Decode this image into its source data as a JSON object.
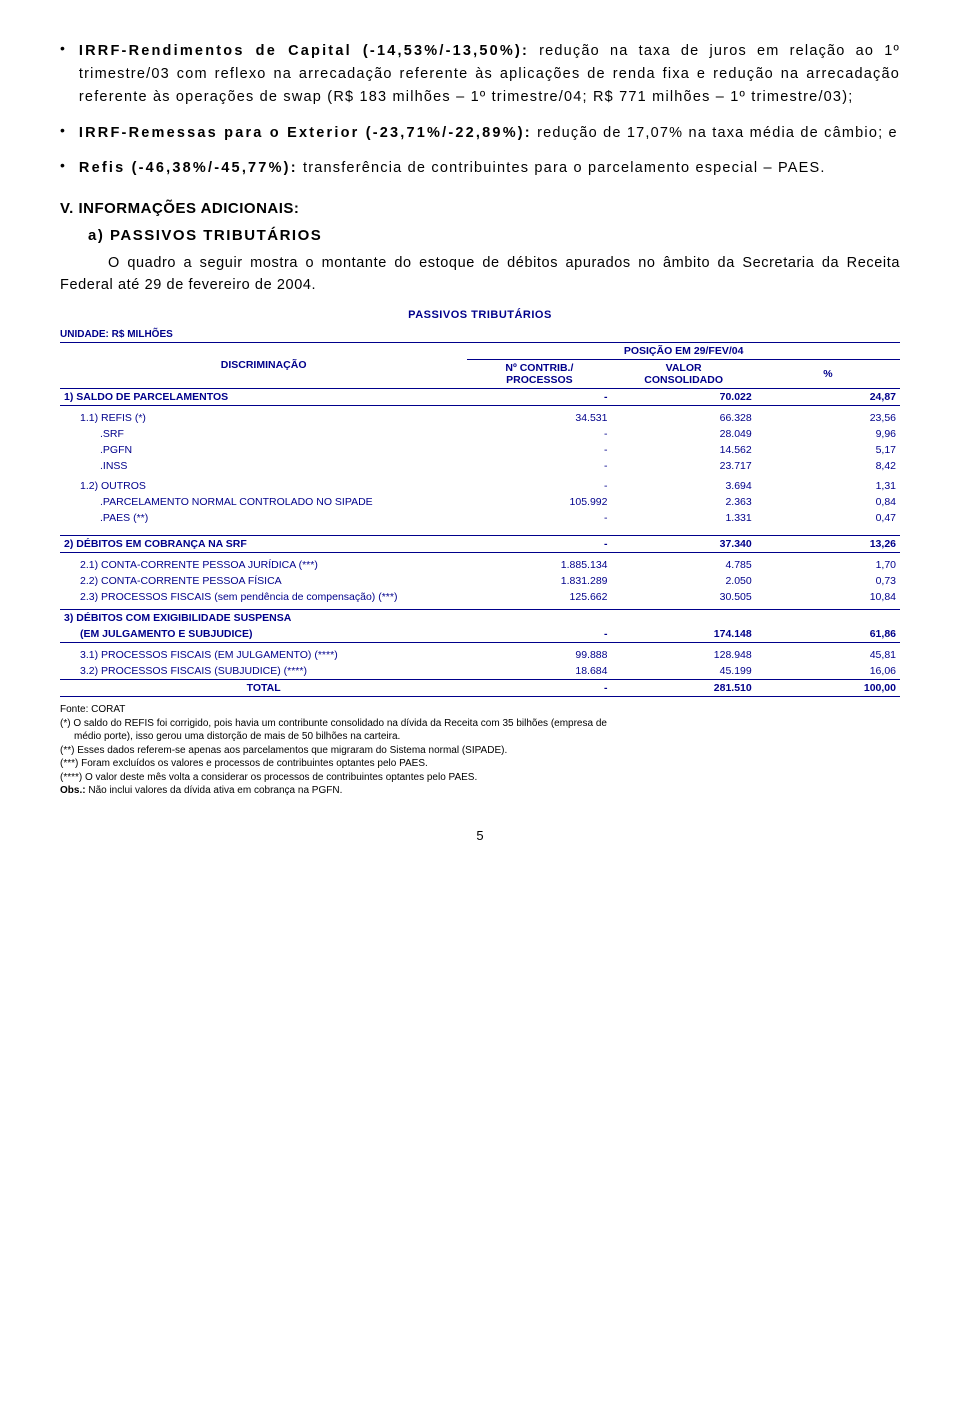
{
  "colors": {
    "text": "#000000",
    "table_text": "#00008b",
    "bg": "#ffffff",
    "border": "#00008b"
  },
  "fonts": {
    "body_size": 14.5,
    "table_size": 10.5,
    "footnote_size": 10
  },
  "bullets": [
    {
      "lead": "IRRF-Rendimentos de Capital (-14,53%/-13,50%):",
      "body": " redução na taxa de juros em relação ao 1º trimestre/03 com reflexo na arrecadação referente às aplicações de renda fixa e redução na arrecadação referente às operações de swap (R$ 183 milhões – 1º trimestre/04; R$ 771 milhões – 1º trimestre/03);"
    },
    {
      "lead": "IRRF-Remessas para o Exterior (-23,71%/-22,89%):",
      "body": " redução de 17,07% na taxa média de câmbio; e"
    },
    {
      "lead": "Refis (-46,38%/-45,77%):",
      "body": " transferência de contribuintes para o parcelamento especial – PAES."
    }
  ],
  "section_v": "V. INFORMAÇÕES ADICIONAIS:",
  "sub_a": "a) PASSIVOS TRIBUTÁRIOS",
  "para": "O quadro a seguir mostra o montante do estoque de débitos apurados no âmbito da Secretaria da Receita Federal até 29 de fevereiro de 2004.",
  "table_title": "PASSIVOS TRIBUTÁRIOS",
  "unit_line": "UNIDADE: R$ MILHÕES",
  "headers": {
    "disc": "DISCRIMINAÇÃO",
    "pos": "POSIÇÃO EM 29/FEV/04",
    "col1": "Nº CONTRIB./\nPROCESSOS",
    "col1a": "Nº CONTRIB./",
    "col1b": "PROCESSOS",
    "col2": "VALOR",
    "col2b": "CONSOLIDADO",
    "col3": "%"
  },
  "rows": [
    {
      "class": "bold-row section-border-bottom",
      "indent": "",
      "label": "1) SALDO DE PARCELAMENTOS",
      "c1": "-",
      "c2": "70.022",
      "c3": "24,87"
    },
    {
      "class": "spacer-small",
      "label": "",
      "c1": "",
      "c2": "",
      "c3": ""
    },
    {
      "class": "",
      "indent": "indent1",
      "label": "1.1) REFIS (*)",
      "c1": "34.531",
      "c2": "66.328",
      "c3": "23,56"
    },
    {
      "class": "",
      "indent": "indent2",
      "label": ".SRF",
      "c1": "-",
      "c2": "28.049",
      "c3": "9,96"
    },
    {
      "class": "",
      "indent": "indent2",
      "label": ".PGFN",
      "c1": "-",
      "c2": "14.562",
      "c3": "5,17"
    },
    {
      "class": "",
      "indent": "indent2",
      "label": ".INSS",
      "c1": "-",
      "c2": "23.717",
      "c3": "8,42"
    },
    {
      "class": "spacer-small",
      "label": "",
      "c1": "",
      "c2": "",
      "c3": ""
    },
    {
      "class": "",
      "indent": "indent1",
      "label": "1.2) OUTROS",
      "c1": "-",
      "c2": "3.694",
      "c3": "1,31"
    },
    {
      "class": "",
      "indent": "indent2",
      "label": ".PARCELAMENTO NORMAL CONTROLADO NO SIPADE",
      "c1": "105.992",
      "c2": "2.363",
      "c3": "0,84"
    },
    {
      "class": "",
      "indent": "indent2",
      "label": ".PAES (**)",
      "c1": "-",
      "c2": "1.331",
      "c3": "0,47"
    },
    {
      "class": "spacer",
      "label": "",
      "c1": "",
      "c2": "",
      "c3": ""
    },
    {
      "class": "bold-row section-border-top section-border-bottom",
      "indent": "",
      "label": "2) DÉBITOS EM COBRANÇA NA SRF",
      "c1": "-",
      "c2": "37.340",
      "c3": "13,26"
    },
    {
      "class": "spacer-small",
      "label": "",
      "c1": "",
      "c2": "",
      "c3": ""
    },
    {
      "class": "",
      "indent": "indent1",
      "label": "2.1) CONTA-CORRENTE PESSOA JURÍDICA (***)",
      "c1": "1.885.134",
      "c2": "4.785",
      "c3": "1,70"
    },
    {
      "class": "",
      "indent": "indent1",
      "label": "2.2) CONTA-CORRENTE PESSOA FÍSICA",
      "c1": "1.831.289",
      "c2": "2.050",
      "c3": "0,73"
    },
    {
      "class": "",
      "indent": "indent1",
      "label": "2.3) PROCESSOS FISCAIS (sem pendência de compensação) (***)",
      "c1": "125.662",
      "c2": "30.505",
      "c3": "10,84"
    },
    {
      "class": "spacer-small",
      "label": "",
      "c1": "",
      "c2": "",
      "c3": ""
    },
    {
      "class": "bold-row section-border-top",
      "indent": "",
      "label": "3) DÉBITOS COM EXIGIBILIDADE SUSPENSA",
      "c1": "",
      "c2": "",
      "c3": ""
    },
    {
      "class": "bold-row section-border-bottom",
      "indent": "indent3",
      "label": "(EM JULGAMENTO E SUBJUDICE)",
      "c1": "-",
      "c2": "174.148",
      "c3": "61,86"
    },
    {
      "class": "spacer-small",
      "label": "",
      "c1": "",
      "c2": "",
      "c3": ""
    },
    {
      "class": "",
      "indent": "indent1",
      "label": "3.1) PROCESSOS FISCAIS (EM JULGAMENTO) (****)",
      "c1": "99.888",
      "c2": "128.948",
      "c3": "45,81"
    },
    {
      "class": "section-border-bottom",
      "indent": "indent1",
      "label": "3.2) PROCESSOS FISCAIS (SUBJUDICE) (****)",
      "c1": "18.684",
      "c2": "45.199",
      "c3": "16,06"
    }
  ],
  "total": {
    "label": "TOTAL",
    "c1": "-",
    "c2": "281.510",
    "c3": "100,00"
  },
  "footnotes": [
    "Fonte: CORAT",
    "(*) O saldo do REFIS foi corrigido, pois havia um contribunte consolidado na dívida da Receita com 35 bilhões (empresa de",
    "   médio porte), isso gerou uma distorção de mais de 50 bilhões na carteira.",
    "(**) Esses dados referem-se apenas aos parcelamentos que migraram do Sistema normal (SIPADE).",
    "(***) Foram excluídos os valores e processos de contribuintes optantes pelo PAES.",
    "(****) O valor deste mês volta a considerar os processos de contribuintes optantes pelo PAES.",
    "Obs.: Não inclui valores da dívida ativa em cobrança na PGFN."
  ],
  "obs_bold": "Obs.:",
  "page_num": "5"
}
